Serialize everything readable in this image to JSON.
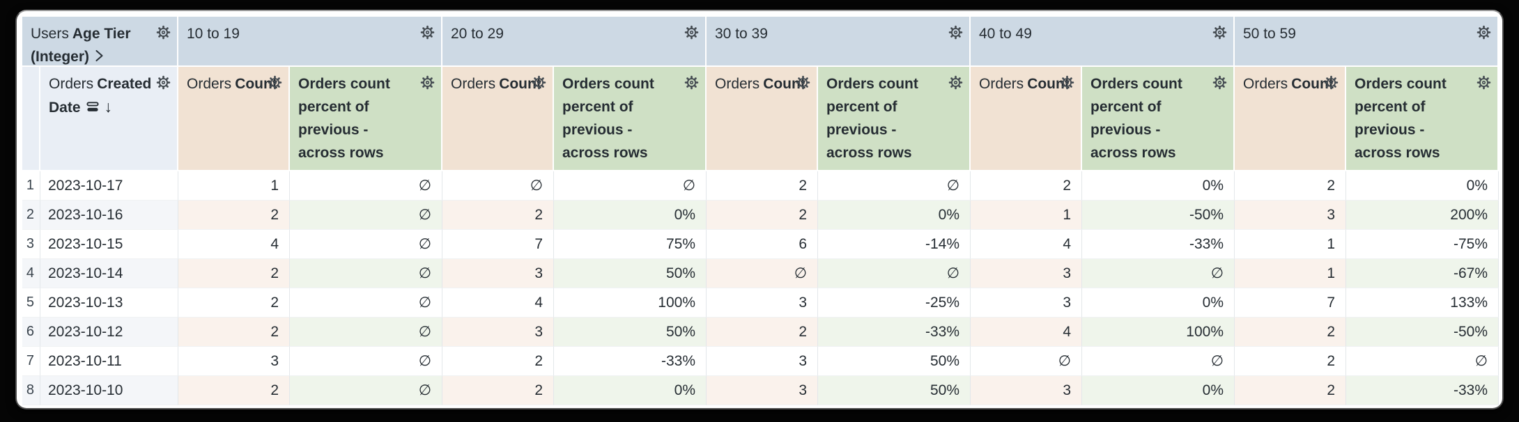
{
  "table": {
    "pivot_field": {
      "view": "Users",
      "field": "Age Tier (Integer)"
    },
    "row_field": {
      "view": "Orders",
      "field": "Created Date"
    },
    "measures": {
      "count": {
        "view": "Orders",
        "field": "Count"
      },
      "percent": {
        "label": "Orders count percent of previous - across rows"
      }
    },
    "pivot_values": [
      "10 to 19",
      "20 to 29",
      "30 to 39",
      "40 to 49",
      "50 to 59"
    ],
    "null_symbol": "∅",
    "sort": {
      "column": "Created Date",
      "direction": "descending"
    },
    "rows": [
      {
        "num": "1",
        "date": "2023-10-17",
        "cells": [
          "1",
          "∅",
          "∅",
          "∅",
          "2",
          "∅",
          "2",
          "0%",
          "2",
          "0%"
        ]
      },
      {
        "num": "2",
        "date": "2023-10-16",
        "cells": [
          "2",
          "∅",
          "2",
          "0%",
          "2",
          "0%",
          "1",
          "-50%",
          "3",
          "200%"
        ]
      },
      {
        "num": "3",
        "date": "2023-10-15",
        "cells": [
          "4",
          "∅",
          "7",
          "75%",
          "6",
          "-14%",
          "4",
          "-33%",
          "1",
          "-75%"
        ]
      },
      {
        "num": "4",
        "date": "2023-10-14",
        "cells": [
          "2",
          "∅",
          "3",
          "50%",
          "∅",
          "∅",
          "3",
          "∅",
          "1",
          "-67%"
        ]
      },
      {
        "num": "5",
        "date": "2023-10-13",
        "cells": [
          "2",
          "∅",
          "4",
          "100%",
          "3",
          "-25%",
          "3",
          "0%",
          "7",
          "133%"
        ]
      },
      {
        "num": "6",
        "date": "2023-10-12",
        "cells": [
          "2",
          "∅",
          "3",
          "50%",
          "2",
          "-33%",
          "4",
          "100%",
          "2",
          "-50%"
        ]
      },
      {
        "num": "7",
        "date": "2023-10-11",
        "cells": [
          "3",
          "∅",
          "2",
          "-33%",
          "3",
          "50%",
          "∅",
          "∅",
          "2",
          "∅"
        ]
      },
      {
        "num": "8",
        "date": "2023-10-10",
        "cells": [
          "2",
          "∅",
          "2",
          "0%",
          "3",
          "50%",
          "3",
          "0%",
          "2",
          "-33%"
        ]
      }
    ]
  },
  "colors": {
    "pivot_header_bg": "#cdd9e4",
    "dimension_header_bg": "#e9eef5",
    "count_header_bg": "#f1e2d3",
    "percent_header_bg": "#cfe0c5",
    "row_tint_dimension": "#f4f6f9",
    "row_tint_count": "#faf2ec",
    "row_tint_percent": "#eff5eb",
    "text": "#262d33"
  }
}
